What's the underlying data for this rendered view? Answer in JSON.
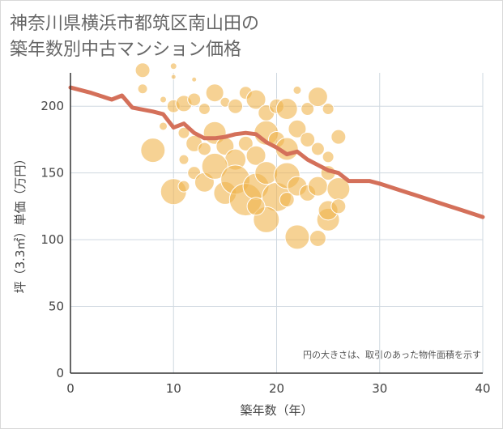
{
  "title_line1": "神奈川県横浜市都筑区南山田の",
  "title_line2": "築年数別中古マンション価格",
  "chart_data": {
    "type": "scatter",
    "xlabel": "築年数（年）",
    "ylabel": "坪（3.3㎡）単価（万円）",
    "xlim": [
      0,
      40
    ],
    "ylim": [
      0,
      225
    ],
    "xticks": [
      0,
      10,
      20,
      30,
      40
    ],
    "yticks": [
      0,
      50,
      100,
      150,
      200
    ],
    "grid": true,
    "note": "円の大きさは、取引のあった物件面積を示す",
    "colors": {
      "bubble": "#f0b44c",
      "line": "#d4705a",
      "grid": "#cfd8e0"
    },
    "trend_line": {
      "x": [
        0,
        2,
        4,
        5,
        6,
        8,
        9,
        10,
        11,
        12,
        13,
        14,
        15,
        16,
        17,
        18,
        19,
        20,
        21,
        22,
        23,
        24,
        25,
        26,
        27,
        28,
        29,
        30,
        32,
        34,
        36,
        38,
        40
      ],
      "y": [
        214,
        210,
        205,
        208,
        199,
        196,
        194,
        184,
        187,
        180,
        176,
        176,
        177,
        179,
        180,
        179,
        173,
        169,
        164,
        166,
        160,
        156,
        152,
        150,
        144,
        144,
        144,
        142,
        137,
        132,
        127,
        122,
        117
      ]
    },
    "bubbles": [
      {
        "x": 7,
        "y": 227,
        "s": 9
      },
      {
        "x": 10,
        "y": 230,
        "s": 4
      },
      {
        "x": 10,
        "y": 222,
        "s": 3
      },
      {
        "x": 12,
        "y": 220,
        "s": 3
      },
      {
        "x": 7,
        "y": 213,
        "s": 6
      },
      {
        "x": 9,
        "y": 205,
        "s": 4
      },
      {
        "x": 10,
        "y": 200,
        "s": 8
      },
      {
        "x": 11,
        "y": 202,
        "s": 10
      },
      {
        "x": 12,
        "y": 205,
        "s": 8
      },
      {
        "x": 13,
        "y": 198,
        "s": 7
      },
      {
        "x": 14,
        "y": 210,
        "s": 11
      },
      {
        "x": 15,
        "y": 203,
        "s": 6
      },
      {
        "x": 16,
        "y": 200,
        "s": 9
      },
      {
        "x": 17,
        "y": 210,
        "s": 8
      },
      {
        "x": 18,
        "y": 205,
        "s": 12
      },
      {
        "x": 19,
        "y": 195,
        "s": 10
      },
      {
        "x": 20,
        "y": 200,
        "s": 9
      },
      {
        "x": 21,
        "y": 198,
        "s": 13
      },
      {
        "x": 22,
        "y": 212,
        "s": 5
      },
      {
        "x": 23,
        "y": 198,
        "s": 8
      },
      {
        "x": 24,
        "y": 207,
        "s": 12
      },
      {
        "x": 25,
        "y": 198,
        "s": 7
      },
      {
        "x": 26,
        "y": 177,
        "s": 9
      },
      {
        "x": 8,
        "y": 167,
        "s": 15
      },
      {
        "x": 9,
        "y": 185,
        "s": 5
      },
      {
        "x": 11,
        "y": 180,
        "s": 7
      },
      {
        "x": 12,
        "y": 172,
        "s": 10
      },
      {
        "x": 13,
        "y": 168,
        "s": 8
      },
      {
        "x": 14,
        "y": 180,
        "s": 14
      },
      {
        "x": 15,
        "y": 170,
        "s": 11
      },
      {
        "x": 16,
        "y": 160,
        "s": 13
      },
      {
        "x": 17,
        "y": 172,
        "s": 9
      },
      {
        "x": 18,
        "y": 163,
        "s": 12
      },
      {
        "x": 19,
        "y": 180,
        "s": 15
      },
      {
        "x": 20,
        "y": 175,
        "s": 10
      },
      {
        "x": 21,
        "y": 168,
        "s": 14
      },
      {
        "x": 22,
        "y": 183,
        "s": 11
      },
      {
        "x": 23,
        "y": 175,
        "s": 9
      },
      {
        "x": 24,
        "y": 168,
        "s": 8
      },
      {
        "x": 25,
        "y": 162,
        "s": 7
      },
      {
        "x": 11,
        "y": 160,
        "s": 6
      },
      {
        "x": 12,
        "y": 150,
        "s": 8
      },
      {
        "x": 13,
        "y": 143,
        "s": 12
      },
      {
        "x": 14,
        "y": 155,
        "s": 16
      },
      {
        "x": 15,
        "y": 135,
        "s": 14
      },
      {
        "x": 16,
        "y": 145,
        "s": 18
      },
      {
        "x": 17,
        "y": 130,
        "s": 20
      },
      {
        "x": 18,
        "y": 140,
        "s": 16
      },
      {
        "x": 19,
        "y": 150,
        "s": 14
      },
      {
        "x": 20,
        "y": 132,
        "s": 18
      },
      {
        "x": 21,
        "y": 148,
        "s": 16
      },
      {
        "x": 22,
        "y": 140,
        "s": 12
      },
      {
        "x": 23,
        "y": 135,
        "s": 10
      },
      {
        "x": 24,
        "y": 140,
        "s": 12
      },
      {
        "x": 25,
        "y": 150,
        "s": 9
      },
      {
        "x": 26,
        "y": 138,
        "s": 14
      },
      {
        "x": 10,
        "y": 136,
        "s": 16
      },
      {
        "x": 11,
        "y": 140,
        "s": 7
      },
      {
        "x": 19,
        "y": 115,
        "s": 16
      },
      {
        "x": 22,
        "y": 102,
        "s": 15
      },
      {
        "x": 24,
        "y": 101,
        "s": 10
      },
      {
        "x": 25,
        "y": 115,
        "s": 14
      },
      {
        "x": 25,
        "y": 122,
        "s": 12
      },
      {
        "x": 26,
        "y": 125,
        "s": 9
      },
      {
        "x": 18,
        "y": 125,
        "s": 11
      },
      {
        "x": 21,
        "y": 130,
        "s": 9
      }
    ]
  }
}
